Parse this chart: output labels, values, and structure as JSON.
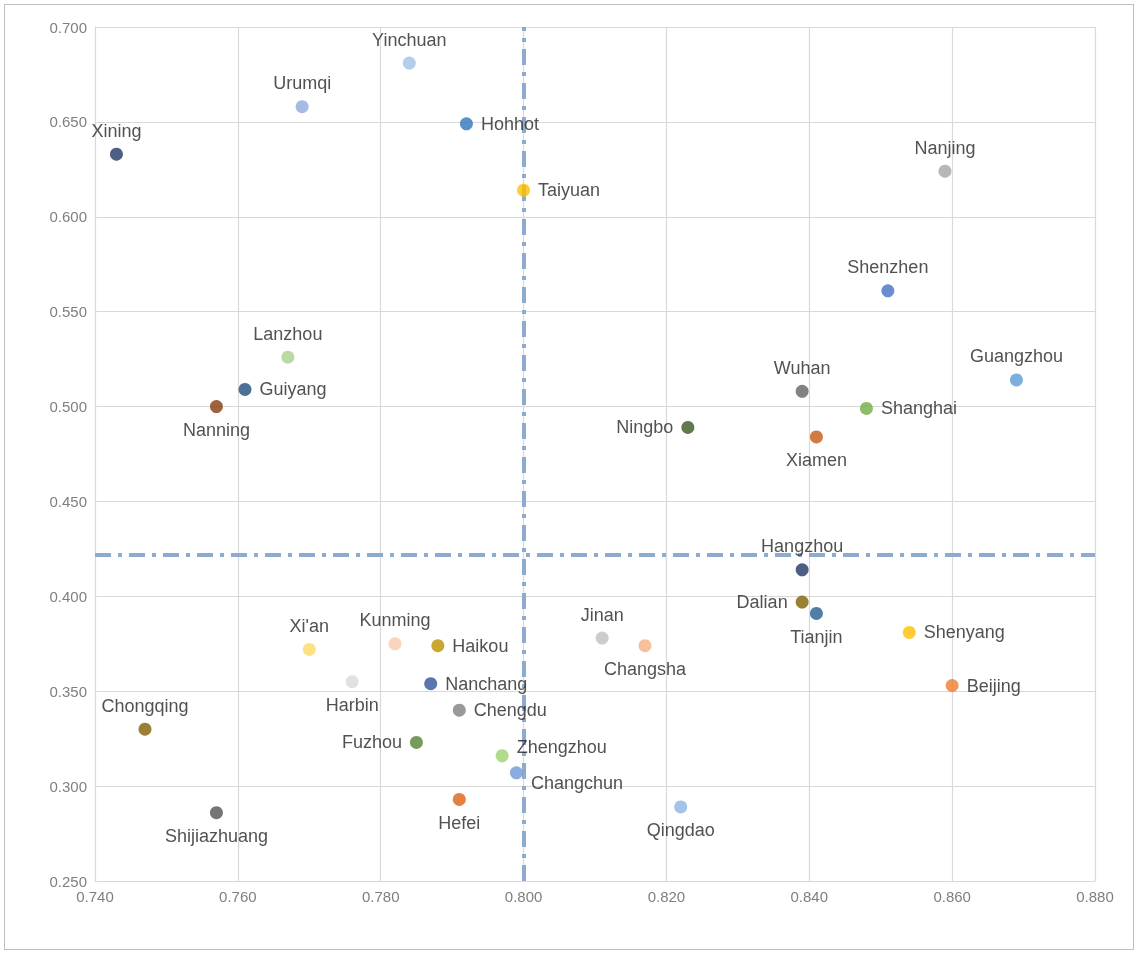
{
  "chart_data": {
    "type": "scatter",
    "marker": "circle",
    "grid": true,
    "xlim": [
      0.74,
      0.88
    ],
    "xticks": [
      {
        "value": 0.74,
        "label": "0.740"
      },
      {
        "value": 0.76,
        "label": "0.760"
      },
      {
        "value": 0.78,
        "label": "0.780"
      },
      {
        "value": 0.8,
        "label": "0.800"
      },
      {
        "value": 0.82,
        "label": "0.820"
      },
      {
        "value": 0.84,
        "label": "0.840"
      },
      {
        "value": 0.86,
        "label": "0.860"
      },
      {
        "value": 0.88,
        "label": "0.880"
      }
    ],
    "ylim": [
      0.25,
      0.7
    ],
    "yticks": [
      {
        "value": 0.25,
        "label": "0.250"
      },
      {
        "value": 0.3,
        "label": "0.300"
      },
      {
        "value": 0.35,
        "label": "0.350"
      },
      {
        "value": 0.4,
        "label": "0.400"
      },
      {
        "value": 0.45,
        "label": "0.450"
      },
      {
        "value": 0.5,
        "label": "0.500"
      },
      {
        "value": 0.55,
        "label": "0.550"
      },
      {
        "value": 0.6,
        "label": "0.600"
      },
      {
        "value": 0.65,
        "label": "0.650"
      },
      {
        "value": 0.7,
        "label": "0.700"
      }
    ],
    "ref_lines": [
      {
        "axis": "x",
        "value": 0.8,
        "color": "#8eaacc",
        "line_style": "dashed"
      },
      {
        "axis": "y",
        "value": 0.422,
        "color": "#8eaacc",
        "line_style": "dashed"
      }
    ],
    "series": [
      {
        "name": "Xining",
        "color": "#1f3864",
        "x": [
          0.743
        ],
        "values": [
          0.633
        ]
      },
      {
        "name": "Urumqi",
        "color": "#8faadc",
        "x": [
          0.769
        ],
        "values": [
          0.658
        ]
      },
      {
        "name": "Yinchuan",
        "color": "#9dc3e6",
        "x": [
          0.784
        ],
        "values": [
          0.681
        ]
      },
      {
        "name": "Hohhot",
        "color": "#2e75b6",
        "x": [
          0.792
        ],
        "values": [
          0.649
        ]
      },
      {
        "name": "Taiyuan",
        "color": "#ffc000",
        "x": [
          0.8
        ],
        "values": [
          0.614
        ]
      },
      {
        "name": "Nanjing",
        "color": "#a5a5a5",
        "x": [
          0.859
        ],
        "values": [
          0.624
        ]
      },
      {
        "name": "Shenzhen",
        "color": "#4472c4",
        "x": [
          0.851
        ],
        "values": [
          0.561
        ]
      },
      {
        "name": "Lanzhou",
        "color": "#a9d18e",
        "x": [
          0.767
        ],
        "values": [
          0.526
        ]
      },
      {
        "name": "Guiyang",
        "color": "#1f4e79",
        "x": [
          0.761
        ],
        "values": [
          0.509
        ]
      },
      {
        "name": "Nanning",
        "color": "#843c0c",
        "x": [
          0.757
        ],
        "values": [
          0.5
        ]
      },
      {
        "name": "Guangzhou",
        "color": "#5b9bd5",
        "x": [
          0.869
        ],
        "values": [
          0.514
        ]
      },
      {
        "name": "Wuhan",
        "color": "#636363",
        "x": [
          0.839
        ],
        "values": [
          0.508
        ]
      },
      {
        "name": "Shanghai",
        "color": "#70ad47",
        "x": [
          0.848
        ],
        "values": [
          0.499
        ]
      },
      {
        "name": "Ningbo",
        "color": "#385723",
        "x": [
          0.823
        ],
        "values": [
          0.489
        ]
      },
      {
        "name": "Xiamen",
        "color": "#c55a11",
        "x": [
          0.841
        ],
        "values": [
          0.484
        ]
      },
      {
        "name": "Hangzhou",
        "color": "#203864",
        "x": [
          0.839
        ],
        "values": [
          0.414
        ]
      },
      {
        "name": "Dalian",
        "color": "#7f6000",
        "x": [
          0.839
        ],
        "values": [
          0.397
        ]
      },
      {
        "name": "Tianjin",
        "color": "#255e91",
        "x": [
          0.841
        ],
        "values": [
          0.391
        ]
      },
      {
        "name": "Shenyang",
        "color": "#ffc000",
        "x": [
          0.854
        ],
        "values": [
          0.381
        ]
      },
      {
        "name": "Beijing",
        "color": "#ed7d31",
        "x": [
          0.86
        ],
        "values": [
          0.353
        ]
      },
      {
        "name": "Jinan",
        "color": "#bfbfbf",
        "x": [
          0.811
        ],
        "values": [
          0.378
        ]
      },
      {
        "name": "Changsha",
        "color": "#f4b183",
        "x": [
          0.817
        ],
        "values": [
          0.374
        ]
      },
      {
        "name": "Xi'an",
        "color": "#ffd966",
        "x": [
          0.77
        ],
        "values": [
          0.372
        ]
      },
      {
        "name": "Kunming",
        "color": "#f8cbad",
        "x": [
          0.782
        ],
        "values": [
          0.375
        ]
      },
      {
        "name": "Haikou",
        "color": "#bf9000",
        "x": [
          0.788
        ],
        "values": [
          0.374
        ]
      },
      {
        "name": "Harbin",
        "color": "#d9d9d9",
        "x": [
          0.776
        ],
        "values": [
          0.355
        ]
      },
      {
        "name": "Nanchang",
        "color": "#2f5597",
        "x": [
          0.787
        ],
        "values": [
          0.354
        ]
      },
      {
        "name": "Chengdu",
        "color": "#7f7f7f",
        "x": [
          0.791
        ],
        "values": [
          0.34
        ]
      },
      {
        "name": "Chongqing",
        "color": "#806000",
        "x": [
          0.747
        ],
        "values": [
          0.33
        ]
      },
      {
        "name": "Fuzhou",
        "color": "#548235",
        "x": [
          0.785
        ],
        "values": [
          0.323
        ]
      },
      {
        "name": "Zhengzhou",
        "color": "#9bd36f",
        "x": [
          0.797
        ],
        "values": [
          0.316
        ]
      },
      {
        "name": "Changchun",
        "color": "#6f96d8",
        "x": [
          0.799
        ],
        "values": [
          0.307
        ]
      },
      {
        "name": "Hefei",
        "color": "#e06010",
        "x": [
          0.791
        ],
        "values": [
          0.293
        ]
      },
      {
        "name": "Shijiazhuang",
        "color": "#525252",
        "x": [
          0.757
        ],
        "values": [
          0.286
        ]
      },
      {
        "name": "Qingdao",
        "color": "#8db4e2",
        "x": [
          0.822
        ],
        "values": [
          0.289
        ]
      }
    ]
  }
}
